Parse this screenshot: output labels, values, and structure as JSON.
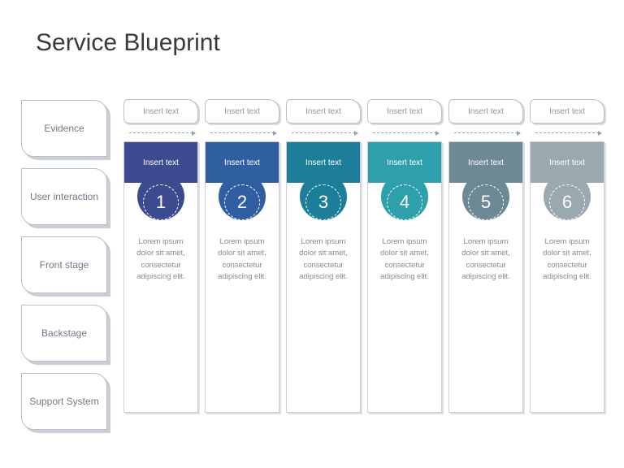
{
  "title": "Service Blueprint",
  "title_color": "#3a3a3a",
  "title_fontsize": 30,
  "background_color": "#ffffff",
  "sidebar": {
    "border_color": "#b9bfc6",
    "shadow_color": "#c9ced4",
    "text_color": "#6f7a87",
    "fontsize": 12,
    "items": [
      {
        "label": "Evidence"
      },
      {
        "label": "User interaction"
      },
      {
        "label": "Front stage"
      },
      {
        "label": "Backstage"
      },
      {
        "label": "Support System"
      }
    ]
  },
  "arrow": {
    "color": "#9aa3ad",
    "style": "dashed"
  },
  "columns": [
    {
      "number": "1",
      "top_label": "Insert text",
      "header_label": "Insert text",
      "body": "Lorem ipsum dolor sit amet, consectetur adipiscing elit.",
      "color": "#3c4a8f",
      "circle_bg": "#3c4a8f"
    },
    {
      "number": "2",
      "top_label": "Insert text",
      "header_label": "Insert text",
      "body": "Lorem ipsum dolor sit amet, consectetur adipiscing elit.",
      "color": "#2f5fa0",
      "circle_bg": "#2f5fa0"
    },
    {
      "number": "3",
      "top_label": "Insert text",
      "header_label": "Insert text",
      "body": "Lorem ipsum dolor sit amet, consectetur adipiscing elit.",
      "color": "#1d7e99",
      "circle_bg": "#1d7e99"
    },
    {
      "number": "4",
      "top_label": "Insert text",
      "header_label": "Insert text",
      "body": "Lorem ipsum dolor sit amet, consectetur adipiscing elit.",
      "color": "#2da0ab",
      "circle_bg": "#2da0ab"
    },
    {
      "number": "5",
      "top_label": "Insert text",
      "header_label": "Insert text",
      "body": "Lorem ipsum dolor sit amet, consectetur adipiscing elit.",
      "color": "#6d8996",
      "circle_bg": "#6d8996"
    },
    {
      "number": "6",
      "top_label": "Insert text",
      "header_label": "Insert text",
      "body": "Lorem ipsum dolor sit amet, consectetur adipiscing elit.",
      "color": "#9aa8b0",
      "circle_bg": "#9aa8b0"
    }
  ],
  "bubble": {
    "border_color": "#b9bfc6",
    "text_color": "#8b97a4",
    "fontsize": 10
  },
  "card": {
    "border_color": "#c9ced4",
    "shadow_color": "#dde1e5",
    "body_text_color": "#7f8a96",
    "body_fontsize": 9.5,
    "header_text_color": "#ffffff",
    "header_fontsize": 10,
    "number_fontsize": 22
  }
}
